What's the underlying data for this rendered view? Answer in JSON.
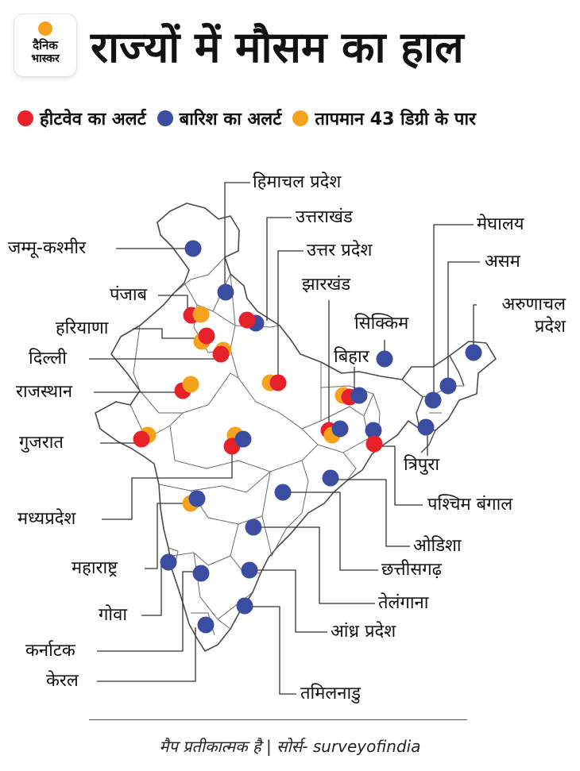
{
  "logo": {
    "line1": "दैनिक",
    "line2": "भास्कर",
    "accent": "#f5a11c"
  },
  "title": "राज्यों में मौसम का हाल",
  "legend": [
    {
      "label": "हीटवेव का अलर्ट",
      "color": "#e8202a"
    },
    {
      "label": "बारिश का अलर्ट",
      "color": "#3b4da0"
    },
    {
      "label": "तापमान 43 डिग्री के पार",
      "color": "#f7a21d"
    }
  ],
  "colors": {
    "heatwave": "#e8202a",
    "rain": "#3b4da0",
    "temp": "#f7a21d"
  },
  "states": [
    {
      "id": "himachal",
      "label": "हिमाचल प्रदेश",
      "alerts": [
        "rain"
      ]
    },
    {
      "id": "uttarakhand",
      "label": "उत्तराखंड",
      "alerts": [
        "rain",
        "heatwave"
      ]
    },
    {
      "id": "up",
      "label": "उत्तर प्रदेश",
      "alerts": [
        "temp",
        "heatwave"
      ]
    },
    {
      "id": "jk",
      "label": "जम्मू-कश्मीर",
      "alerts": [
        "rain"
      ]
    },
    {
      "id": "punjab",
      "label": "पंजाब",
      "alerts": [
        "heatwave",
        "temp"
      ]
    },
    {
      "id": "haryana",
      "label": "हरियाणा",
      "alerts": [
        "temp",
        "heatwave"
      ]
    },
    {
      "id": "delhi",
      "label": "दिल्ली",
      "alerts": [
        "temp",
        "heatwave"
      ]
    },
    {
      "id": "rajasthan",
      "label": "राजस्थान",
      "alerts": [
        "heatwave",
        "temp"
      ]
    },
    {
      "id": "gujarat",
      "label": "गुजरात",
      "alerts": [
        "temp",
        "heatwave"
      ]
    },
    {
      "id": "mp",
      "label": "मध्यप्रदेश",
      "alerts": [
        "temp",
        "heatwave",
        "rain"
      ]
    },
    {
      "id": "maharashtra",
      "label": "महाराष्ट्र",
      "alerts": [
        "temp",
        "rain"
      ]
    },
    {
      "id": "goa",
      "label": "गोवा",
      "alerts": [
        "rain"
      ]
    },
    {
      "id": "karnataka",
      "label": "कर्नाटक",
      "alerts": [
        "rain"
      ]
    },
    {
      "id": "kerala",
      "label": "केरल",
      "alerts": [
        "rain"
      ]
    },
    {
      "id": "tamilnadu",
      "label": "तमिलनाडु",
      "alerts": [
        "rain"
      ]
    },
    {
      "id": "ap",
      "label": "आंध्र प्रदेश",
      "alerts": [
        "rain"
      ]
    },
    {
      "id": "telangana",
      "label": "तेलंगाना",
      "alerts": [
        "rain"
      ]
    },
    {
      "id": "chhattisgarh",
      "label": "छत्तीसगढ़",
      "alerts": [
        "rain"
      ]
    },
    {
      "id": "odisha",
      "label": "ओडिशा",
      "alerts": [
        "rain"
      ]
    },
    {
      "id": "wb",
      "label": "पश्चिम बंगाल",
      "alerts": [
        "rain",
        "heatwave"
      ]
    },
    {
      "id": "jharkhand",
      "label": "झारखंड",
      "alerts": [
        "heatwave",
        "temp",
        "rain"
      ]
    },
    {
      "id": "bihar",
      "label": "बिहार",
      "alerts": [
        "temp",
        "heatwave",
        "rain"
      ]
    },
    {
      "id": "sikkim",
      "label": "सिक्किम",
      "alerts": [
        "rain"
      ]
    },
    {
      "id": "meghalaya",
      "label": "मेघालय",
      "alerts": [
        "rain"
      ]
    },
    {
      "id": "assam",
      "label": "असम",
      "alerts": [
        "rain"
      ]
    },
    {
      "id": "arunachal",
      "label": "अरुणाचल प्रदेश",
      "alerts": [
        "rain"
      ]
    },
    {
      "id": "tripura",
      "label": "त्रिपुरा",
      "alerts": [
        "rain"
      ]
    }
  ],
  "footer": "मैप प्रतीकात्मक है | सोर्स- surveyofindia"
}
